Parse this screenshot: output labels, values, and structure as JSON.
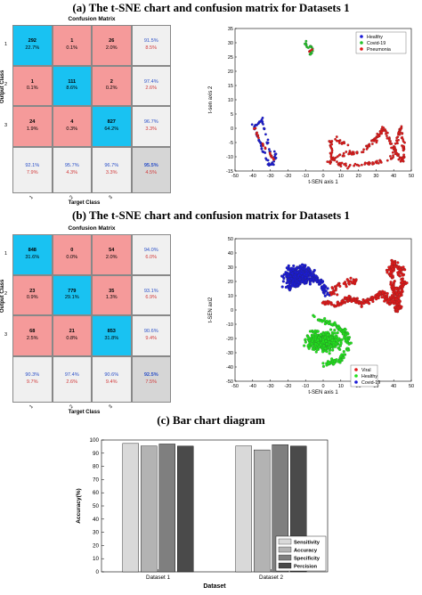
{
  "captions": {
    "a": "(a)  The t-SNE chart and confusion matrix for Datasets 1",
    "b": "(b)  The t-SNE chart and confusion matrix for Datasets 1",
    "c": "(c)  Bar chart diagram"
  },
  "colors": {
    "diag": "#19c2f2",
    "offdiag": "#f59a9a",
    "summary": "#f0f0f0",
    "overall": "#d6d6d6",
    "pct_green": "#2b50c8",
    "pct_red": "#d23a3a"
  },
  "cm1": {
    "title": "Confusion Matrix",
    "ylabel": "Output Class",
    "xlabel": "Target Class",
    "row_ticks": [
      "1",
      "2",
      "3"
    ],
    "col_ticks": [
      "1",
      "2",
      "3"
    ],
    "cells": [
      [
        {
          "n": "292",
          "p": "22.7%"
        },
        {
          "n": "1",
          "p": "0.1%"
        },
        {
          "n": "26",
          "p": "2.0%"
        }
      ],
      [
        {
          "n": "1",
          "p": "0.1%"
        },
        {
          "n": "111",
          "p": "8.6%"
        },
        {
          "n": "2",
          "p": "0.2%"
        }
      ],
      [
        {
          "n": "24",
          "p": "1.9%"
        },
        {
          "n": "4",
          "p": "0.3%"
        },
        {
          "n": "827",
          "p": "64.2%"
        }
      ]
    ],
    "row_summary": [
      [
        "91.5%",
        "8.5%"
      ],
      [
        "97.4%",
        "2.6%"
      ],
      [
        "96.7%",
        "3.3%"
      ]
    ],
    "col_summary": [
      [
        "92.1%",
        "7.9%"
      ],
      [
        "95.7%",
        "4.3%"
      ],
      [
        "96.7%",
        "3.3%"
      ]
    ],
    "overall": [
      "95.5%",
      "4.5%"
    ]
  },
  "cm2": {
    "title": "Confusion Matrix",
    "ylabel": "Output Class",
    "xlabel": "Target Class",
    "row_ticks": [
      "1",
      "2",
      "3"
    ],
    "col_ticks": [
      "1",
      "2",
      "3"
    ],
    "cells": [
      [
        {
          "n": "848",
          "p": "31.6%"
        },
        {
          "n": "0",
          "p": "0.0%"
        },
        {
          "n": "54",
          "p": "2.0%"
        }
      ],
      [
        {
          "n": "23",
          "p": "0.9%"
        },
        {
          "n": "779",
          "p": "29.1%"
        },
        {
          "n": "35",
          "p": "1.3%"
        }
      ],
      [
        {
          "n": "68",
          "p": "2.5%"
        },
        {
          "n": "21",
          "p": "0.8%"
        },
        {
          "n": "853",
          "p": "31.8%"
        }
      ]
    ],
    "row_summary": [
      [
        "94.0%",
        "6.0%"
      ],
      [
        "93.1%",
        "6.9%"
      ],
      [
        "90.6%",
        "9.4%"
      ]
    ],
    "col_summary": [
      [
        "90.3%",
        "9.7%"
      ],
      [
        "97.4%",
        "2.6%"
      ],
      [
        "90.6%",
        "9.4%"
      ]
    ],
    "overall": [
      "92.5%",
      "7.5%"
    ]
  },
  "tsne1": {
    "xlabel": "t-SEN axis 1",
    "ylabel": "t-sen axis 2",
    "xlim": [
      -50,
      50
    ],
    "ylim": [
      -15,
      35
    ],
    "xticks": [
      -50,
      -40,
      -30,
      -20,
      -10,
      0,
      10,
      20,
      30,
      40,
      50
    ],
    "yticks": [
      -15,
      -10,
      -5,
      0,
      5,
      10,
      15,
      20,
      25,
      30,
      35
    ],
    "legend": [
      {
        "label": "Healthy",
        "color": "#1a1ad6"
      },
      {
        "label": "Covid-19",
        "color": "#22c22a"
      },
      {
        "label": "Pneumonia",
        "color": "#e01818"
      }
    ]
  },
  "tsne2": {
    "xlabel": "t-SEN axis 1",
    "ylabel": "t-SEN axi2",
    "xlim": [
      -50,
      50
    ],
    "ylim": [
      -50,
      50
    ],
    "xticks": [
      -50,
      -40,
      -30,
      -20,
      -10,
      0,
      10,
      20,
      30,
      40,
      50
    ],
    "yticks": [
      -50,
      -40,
      -30,
      -20,
      -10,
      0,
      10,
      20,
      30,
      40,
      50
    ],
    "legend": [
      {
        "label": "Viral",
        "color": "#e01818"
      },
      {
        "label": "Healthy",
        "color": "#22e01e"
      },
      {
        "label": "Covid-19",
        "color": "#1a1ad6"
      }
    ]
  },
  "chart_data": [
    {
      "type": "bar",
      "title": "",
      "xlabel": "Dataset",
      "ylabel": "Accuracy(%)",
      "ylim": [
        0,
        100
      ],
      "yticks": [
        0,
        10,
        20,
        30,
        40,
        50,
        60,
        70,
        80,
        90,
        100
      ],
      "categories": [
        "Dataset 1",
        "Dataset 2"
      ],
      "series": [
        {
          "name": "Sensitivity",
          "color": "#d9d9d9",
          "values": [
            97.4,
            95.5
          ]
        },
        {
          "name": "Accuracy",
          "color": "#b3b3b3",
          "values": [
            95.5,
            92.5
          ]
        },
        {
          "name": "Specificity",
          "color": "#7f7f7f",
          "values": [
            97.0,
            96.5
          ]
        },
        {
          "name": "Percision",
          "color": "#4a4a4a",
          "values": [
            95.4,
            95.4
          ]
        }
      ],
      "legend_position": "bottom-right"
    }
  ]
}
